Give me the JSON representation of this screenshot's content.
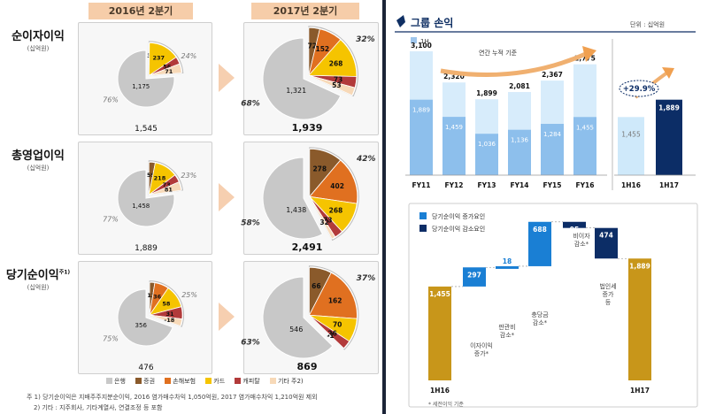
{
  "left": {
    "periods": [
      "2016년 2분기",
      "2017년 2분기"
    ],
    "rows": [
      {
        "title": "순이자이익",
        "unit": "(십억원)",
        "total_a": "1,545",
        "total_b": "1,939",
        "pie_a": {
          "bank_pct": "76%",
          "other_pct": "24%",
          "slices": [
            {
              "seg": "증권",
              "value": 3,
              "label": "3"
            },
            {
              "seg": "카드",
              "value": 237,
              "label": "237"
            },
            {
              "seg": "캐피탈",
              "value": 56,
              "label": "56"
            },
            {
              "seg": "기타",
              "value": 71,
              "label": "71"
            },
            {
              "seg": "은행",
              "value": 1175,
              "label": "1,175"
            }
          ]
        },
        "pie_b": {
          "bank_pct": "68%",
          "other_pct": "32%",
          "slices": [
            {
              "seg": "증권",
              "value": 72,
              "label": "72"
            },
            {
              "seg": "손해보험",
              "value": 152,
              "label": "152"
            },
            {
              "seg": "카드",
              "value": 268,
              "label": "268"
            },
            {
              "seg": "캐피탈",
              "value": 73,
              "label": "73"
            },
            {
              "seg": "기타",
              "value": 53,
              "label": "53"
            },
            {
              "seg": "은행",
              "value": 1321,
              "label": "1,321"
            }
          ]
        }
      },
      {
        "title": "총영업이익",
        "unit": "(십억원)",
        "total_a": "1,889",
        "total_b": "2,491",
        "pie_a": {
          "bank_pct": "77%",
          "other_pct": "23%",
          "slices": [
            {
              "seg": "증권",
              "value": 59,
              "label": "59"
            },
            {
              "seg": "카드",
              "value": 218,
              "label": "218"
            },
            {
              "seg": "캐피탈",
              "value": 73,
              "label": "73"
            },
            {
              "seg": "기타",
              "value": 81,
              "label": "81"
            },
            {
              "seg": "은행",
              "value": 1458,
              "label": "1,458"
            }
          ]
        },
        "pie_b": {
          "bank_pct": "58%",
          "other_pct": "42%",
          "slices": [
            {
              "seg": "증권",
              "value": 278,
              "label": "278"
            },
            {
              "seg": "손해보험",
              "value": 402,
              "label": "402"
            },
            {
              "seg": "카드",
              "value": 268,
              "label": "268"
            },
            {
              "seg": "캐피탈",
              "value": 73,
              "label": "73"
            },
            {
              "seg": "기타",
              "value": 32,
              "label": "32"
            },
            {
              "seg": "은행",
              "value": 1438,
              "label": "1,438"
            }
          ]
        }
      },
      {
        "title": "당기순이익",
        "title_sup": "주1)",
        "unit": "(십억원)",
        "total_a": "476",
        "total_b": "869",
        "pie_a": {
          "bank_pct": "75%",
          "other_pct": "25%",
          "slices": [
            {
              "seg": "증권",
              "value": 13,
              "label": "13"
            },
            {
              "seg": "손해보험",
              "value": 36,
              "label": "36"
            },
            {
              "seg": "카드",
              "value": 58,
              "label": "58"
            },
            {
              "seg": "캐피탈",
              "value": 31,
              "label": "31"
            },
            {
              "seg": "기타",
              "value": 18,
              "label": "-18"
            },
            {
              "seg": "은행",
              "value": 356,
              "label": "356"
            }
          ]
        },
        "pie_b": {
          "bank_pct": "63%",
          "other_pct": "37%",
          "slices": [
            {
              "seg": "증권",
              "value": 66,
              "label": "66"
            },
            {
              "seg": "손해보험",
              "value": 162,
              "label": "162"
            },
            {
              "seg": "카드",
              "value": 70,
              "label": "70"
            },
            {
              "seg": "캐피탈",
              "value": 26,
              "label": "26"
            },
            {
              "seg": "기타",
              "value": 1,
              "label": "-1"
            },
            {
              "seg": "은행",
              "value": 546,
              "label": "546"
            }
          ]
        }
      }
    ],
    "segment_colors": {
      "은행": "#c8c8c8",
      "증권": "#8a5a2b",
      "손해보험": "#e07020",
      "카드": "#f5c400",
      "캐피탈": "#b23a3a",
      "기타": "#f7d9b8"
    },
    "legend": [
      {
        "seg": "은행",
        "label": "은행"
      },
      {
        "seg": "증권",
        "label": "증권"
      },
      {
        "seg": "손해보험",
        "label": "손해보험"
      },
      {
        "seg": "카드",
        "label": "카드"
      },
      {
        "seg": "캐피탈",
        "label": "캐피탈"
      },
      {
        "seg": "기타",
        "label": "기타 주2)"
      }
    ],
    "notes": [
      "주 1) 당기순이익은 지배주주지분순이익, 2016 염가매수차익 1,050억원, 2017 염가매수차익 1,210억원 제외",
      "2) 기타 : 지주회사, 기타계열사, 연결조정 등 포함"
    ]
  },
  "right": {
    "title": "그룹 손익",
    "unit": "단위 : 십억원",
    "legend_1h": "1H",
    "annual_caption": "연간 누적 기준",
    "growth": "+29.9%",
    "chart_data": [
      {
        "type": "bar",
        "title": "",
        "categories": [
          "FY11",
          "FY12",
          "FY13",
          "FY14",
          "FY15",
          "FY16"
        ],
        "series": [
          {
            "name": "",
            "values": [
              3100,
              2320,
              1899,
              2081,
              2367,
              2775
            ],
            "labels": [
              "3,100",
              "2,320",
              "1,899",
              "2,081",
              "2,367",
              "2,775"
            ]
          },
          {
            "name": "1H",
            "values": [
              1889,
              1459,
              1036,
              1136,
              1284,
              1455
            ],
            "labels": [
              "1,889",
              "1,459",
              "1,036",
              "1,136",
              "1,284",
              "1,455"
            ]
          }
        ]
      },
      {
        "type": "bar",
        "title": "",
        "categories": [
          "1H16",
          "1H17"
        ],
        "series": [
          {
            "name": "1H",
            "values": [
              1455,
              1889
            ],
            "labels": [
              "1,455",
              "1,889"
            ]
          }
        ]
      },
      {
        "type": "bar",
        "subtype": "waterfall",
        "title": "",
        "categories": [
          "1H16",
          "이자이익 증가*",
          "판관비 감소*",
          "충당금 감소*",
          "비이자 감소*",
          "법인세 증가 등",
          "1H17"
        ],
        "values": [
          1455,
          297,
          18,
          688,
          -95,
          -474,
          1889
        ],
        "labels": [
          "1,455",
          "297",
          "18",
          "688",
          "95",
          "474",
          "1,889"
        ],
        "legend": [
          "당기순이익 증가요인",
          "당기순이익 감소요인"
        ]
      }
    ],
    "footnote": "* 세전이익 기준"
  }
}
